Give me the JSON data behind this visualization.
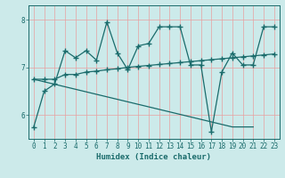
{
  "xlabel": "Humidex (Indice chaleur)",
  "bg_color": "#cceaea",
  "line_color": "#1a6b6b",
  "grid_color": "#e8a0a0",
  "xlim": [
    -0.5,
    23.5
  ],
  "ylim": [
    5.5,
    8.3
  ],
  "yticks": [
    6,
    7,
    8
  ],
  "xticks": [
    0,
    1,
    2,
    3,
    4,
    5,
    6,
    7,
    8,
    9,
    10,
    11,
    12,
    13,
    14,
    15,
    16,
    17,
    18,
    19,
    20,
    21,
    22,
    23
  ],
  "line1_x": [
    0,
    1,
    2,
    3,
    4,
    5,
    6,
    7,
    8,
    9,
    10,
    11,
    12,
    13,
    14,
    15,
    16,
    17,
    18,
    19,
    20,
    21,
    22,
    23
  ],
  "line1_y": [
    5.75,
    6.5,
    6.65,
    7.35,
    7.2,
    7.35,
    7.15,
    7.95,
    7.3,
    6.95,
    7.45,
    7.5,
    7.85,
    7.85,
    7.85,
    7.05,
    7.05,
    5.65,
    6.9,
    7.3,
    7.05,
    7.05,
    7.85,
    7.85
  ],
  "line2_x": [
    0,
    1,
    2,
    3,
    4,
    5,
    6,
    7,
    8,
    9,
    10,
    11,
    12,
    13,
    14,
    15,
    16,
    17,
    18,
    19,
    20,
    21,
    22,
    23
  ],
  "line2_y": [
    6.75,
    6.75,
    6.75,
    6.85,
    6.85,
    6.9,
    6.92,
    6.95,
    6.97,
    7.0,
    7.02,
    7.04,
    7.06,
    7.08,
    7.1,
    7.12,
    7.14,
    7.16,
    7.18,
    7.2,
    7.22,
    7.24,
    7.26,
    7.28
  ],
  "line3_x": [
    0,
    19,
    21
  ],
  "line3_y": [
    6.75,
    5.75,
    5.75
  ]
}
